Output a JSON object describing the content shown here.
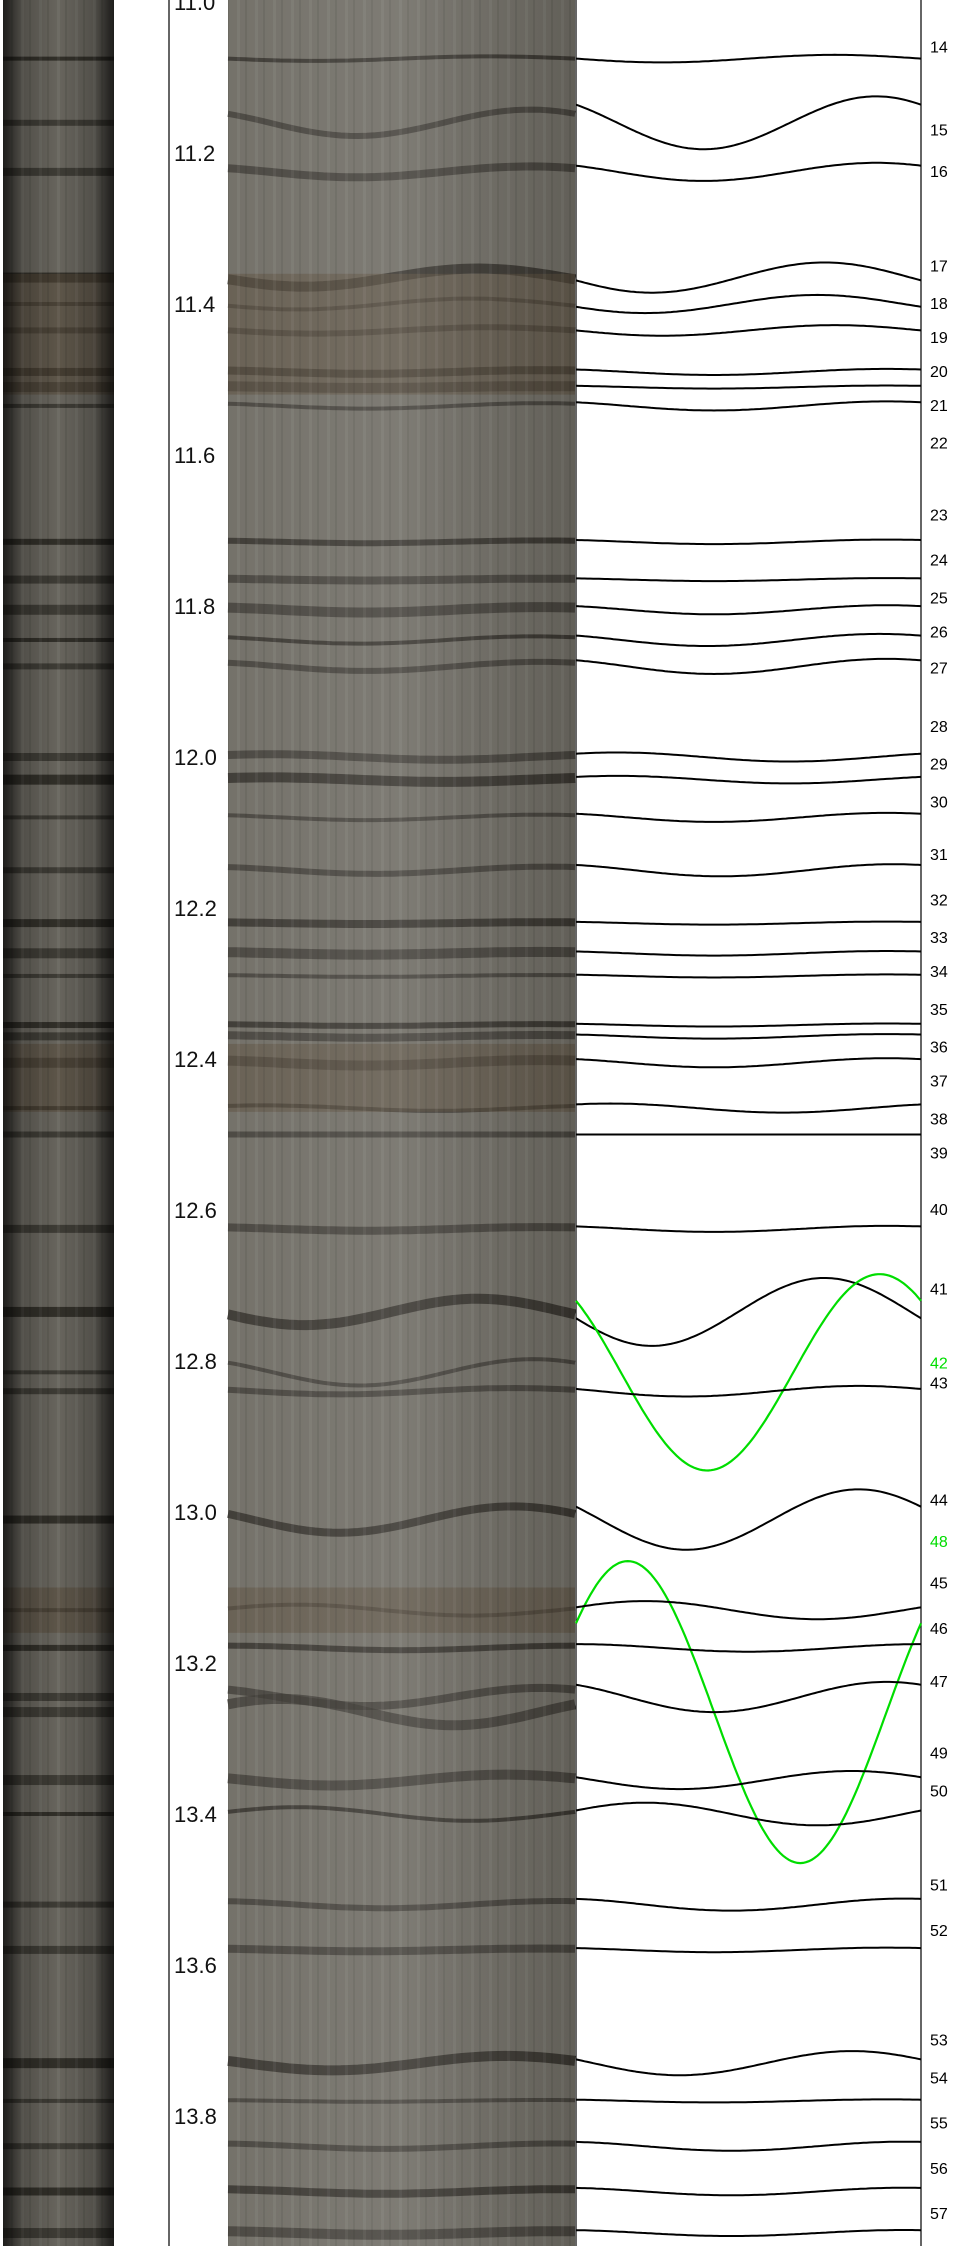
{
  "colors": {
    "pick_default": "#000000",
    "pick_highlight": "#00dd00",
    "core_base": "#6d6a62",
    "core_dark_band": "#222019",
    "core_brown_band": "#5a4d3c"
  },
  "chart_data": {
    "type": "core-log-sinusoid-picks",
    "depth_axis": {
      "ticks": [
        11.0,
        11.2,
        11.4,
        11.6,
        11.8,
        12.0,
        12.2,
        12.4,
        12.6,
        12.8,
        13.0,
        13.2,
        13.4,
        13.6,
        13.8
      ],
      "tick_labels": [
        "11.0",
        "11.2",
        "11.4",
        "11.6",
        "11.8",
        "12.0",
        "12.2",
        "12.4",
        "12.6",
        "12.8",
        "13.0",
        "13.2",
        "13.4",
        "13.6",
        "13.8"
      ],
      "range": [
        11.0,
        13.96
      ]
    },
    "picks": [
      {
        "id": "14",
        "depth": 11.075,
        "amp": 0.005,
        "phase": 0.25,
        "label_depth": 11.06
      },
      {
        "id": "15",
        "depth": 11.16,
        "amp": 0.035,
        "phase": 0.37,
        "label_depth": 11.17
      },
      {
        "id": "16",
        "depth": 11.225,
        "amp": 0.012,
        "phase": 0.37,
        "label_depth": 11.225
      },
      {
        "id": "17",
        "depth": 11.365,
        "amp": 0.02,
        "phase": 0.22,
        "label_depth": 11.35
      },
      {
        "id": "18",
        "depth": 11.4,
        "amp": 0.012,
        "phase": 0.2,
        "label_depth": 11.4
      },
      {
        "id": "19",
        "depth": 11.435,
        "amp": 0.007,
        "phase": 0.25,
        "label_depth": 11.445
      },
      {
        "id": "20",
        "depth": 11.49,
        "amp": 0.004,
        "phase": 0.4,
        "label_depth": 11.49
      },
      {
        "id": "21",
        "depth": 11.51,
        "amp": 0.002,
        "phase": 0.4,
        "label_depth": 11.535
      },
      {
        "id": "22",
        "depth": 11.535,
        "amp": 0.006,
        "phase": 0.4,
        "label_depth": 11.585
      },
      {
        "id": "23",
        "depth": 11.715,
        "amp": 0.003,
        "phase": 0.4,
        "label_depth": 11.68
      },
      {
        "id": "24",
        "depth": 11.765,
        "amp": 0.002,
        "phase": 0.4,
        "label_depth": 11.74
      },
      {
        "id": "25",
        "depth": 11.805,
        "amp": 0.006,
        "phase": 0.4,
        "label_depth": 11.79
      },
      {
        "id": "26",
        "depth": 11.845,
        "amp": 0.008,
        "phase": 0.38,
        "label_depth": 11.835
      },
      {
        "id": "27",
        "depth": 11.88,
        "amp": 0.01,
        "phase": 0.4,
        "label_depth": 11.883
      },
      {
        "id": "28",
        "depth": 12.0,
        "amp": 0.006,
        "phase": 0.62,
        "label_depth": 11.96
      },
      {
        "id": "29",
        "depth": 12.03,
        "amp": 0.005,
        "phase": 0.62,
        "label_depth": 12.01
      },
      {
        "id": "30",
        "depth": 12.08,
        "amp": 0.006,
        "phase": 0.4,
        "label_depth": 12.06
      },
      {
        "id": "31",
        "depth": 12.15,
        "amp": 0.008,
        "phase": 0.42,
        "label_depth": 12.13
      },
      {
        "id": "32",
        "depth": 12.22,
        "amp": 0.002,
        "phase": 0.4,
        "label_depth": 12.19
      },
      {
        "id": "33",
        "depth": 12.26,
        "amp": 0.003,
        "phase": 0.4,
        "label_depth": 12.24
      },
      {
        "id": "34",
        "depth": 12.29,
        "amp": 0.002,
        "phase": 0.4,
        "label_depth": 12.285
      },
      {
        "id": "35",
        "depth": 12.355,
        "amp": 0.002,
        "phase": 0.4,
        "label_depth": 12.335
      },
      {
        "id": "36",
        "depth": 12.37,
        "amp": 0.003,
        "phase": 0.4,
        "label_depth": 12.385
      },
      {
        "id": "37",
        "depth": 12.405,
        "amp": 0.006,
        "phase": 0.4,
        "label_depth": 12.43
      },
      {
        "id": "38",
        "depth": 12.465,
        "amp": 0.006,
        "phase": 0.6,
        "label_depth": 12.48
      },
      {
        "id": "39",
        "depth": 12.5,
        "amp": 0.0,
        "phase": 0.4,
        "label_depth": 12.525
      },
      {
        "id": "40",
        "depth": 12.625,
        "amp": 0.004,
        "phase": 0.4,
        "label_depth": 12.6
      },
      {
        "id": "41",
        "depth": 12.735,
        "amp": 0.045,
        "phase": 0.22,
        "label_depth": 12.705
      },
      {
        "id": "42",
        "depth": 12.815,
        "amp": 0.13,
        "phase": 0.38,
        "label_depth": 12.803,
        "highlight": true
      },
      {
        "id": "43",
        "depth": 12.84,
        "amp": 0.007,
        "phase": 0.32,
        "label_depth": 12.83
      },
      {
        "id": "44",
        "depth": 13.01,
        "amp": 0.04,
        "phase": 0.32,
        "label_depth": 12.985
      },
      {
        "id": "48",
        "depth": 13.265,
        "amp": 0.2,
        "phase": 0.65,
        "label_depth": 13.04,
        "highlight": true
      },
      {
        "id": "45",
        "depth": 13.13,
        "amp": 0.012,
        "phase": 0.7,
        "label_depth": 13.095
      },
      {
        "id": "46",
        "depth": 13.18,
        "amp": 0.005,
        "phase": 0.5,
        "label_depth": 13.155
      },
      {
        "id": "47",
        "depth": 13.245,
        "amp": 0.02,
        "phase": 0.4,
        "label_depth": 13.225
      },
      {
        "id": "49",
        "depth": 13.355,
        "amp": 0.012,
        "phase": 0.3,
        "label_depth": 13.32
      },
      {
        "id": "50",
        "depth": 13.4,
        "amp": 0.015,
        "phase": 0.7,
        "label_depth": 13.37
      },
      {
        "id": "51",
        "depth": 13.52,
        "amp": 0.008,
        "phase": 0.45,
        "label_depth": 13.495
      },
      {
        "id": "52",
        "depth": 13.58,
        "amp": 0.003,
        "phase": 0.4,
        "label_depth": 13.555
      },
      {
        "id": "53",
        "depth": 13.73,
        "amp": 0.016,
        "phase": 0.3,
        "label_depth": 13.7
      },
      {
        "id": "54",
        "depth": 13.78,
        "amp": 0.002,
        "phase": 0.4,
        "label_depth": 13.75
      },
      {
        "id": "55",
        "depth": 13.84,
        "amp": 0.006,
        "phase": 0.45,
        "label_depth": 13.81
      },
      {
        "id": "56",
        "depth": 13.9,
        "amp": 0.005,
        "phase": 0.45,
        "label_depth": 13.87
      },
      {
        "id": "57",
        "depth": 13.955,
        "amp": 0.004,
        "phase": 0.45,
        "label_depth": 13.93
      }
    ]
  }
}
